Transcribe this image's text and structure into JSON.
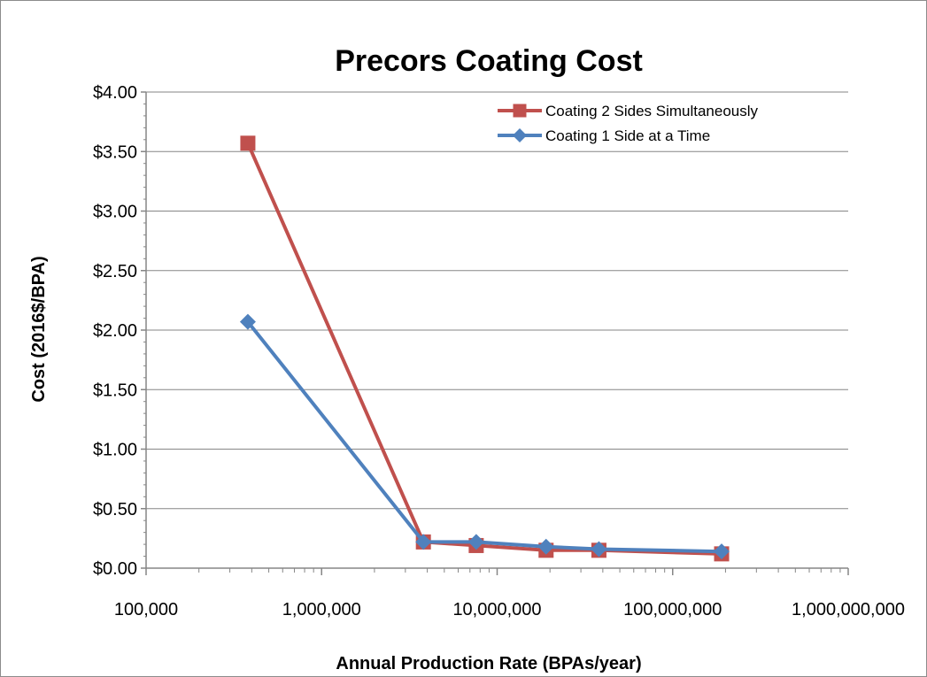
{
  "chart_data": {
    "type": "line",
    "title": "Precors Coating Cost",
    "xlabel": "Annual Production Rate (BPAs/year)",
    "ylabel": "Cost (2016$/BPA)",
    "x_scale": "log",
    "xlim": [
      100000,
      1000000000
    ],
    "ylim": [
      0,
      4
    ],
    "x_ticks": [
      100000,
      1000000,
      10000000,
      100000000,
      1000000000
    ],
    "x_tick_labels": [
      "100,000",
      "1,000,000",
      "10,000,000",
      "100,000,000",
      "1,000,000,000"
    ],
    "y_ticks": [
      0,
      0.5,
      1,
      1.5,
      2,
      2.5,
      3,
      3.5,
      4
    ],
    "y_tick_labels": [
      "$0.00",
      "$0.50",
      "$1.00",
      "$1.50",
      "$2.00",
      "$2.50",
      "$3.00",
      "$3.50",
      "$4.00"
    ],
    "grid": "horizontal",
    "legend_position": "top-right",
    "series": [
      {
        "name": "Coating 2 Sides Simultaneously",
        "color": "#c0504d",
        "marker": "square",
        "x": [
          380000,
          3800000,
          7600000,
          19000000,
          38000000,
          190000000
        ],
        "y": [
          3.57,
          0.22,
          0.19,
          0.15,
          0.15,
          0.12
        ]
      },
      {
        "name": "Coating 1 Side at a Time",
        "color": "#4f81bd",
        "marker": "diamond",
        "x": [
          380000,
          3800000,
          7600000,
          19000000,
          38000000,
          190000000
        ],
        "y": [
          2.07,
          0.22,
          0.22,
          0.18,
          0.16,
          0.14
        ]
      }
    ]
  }
}
